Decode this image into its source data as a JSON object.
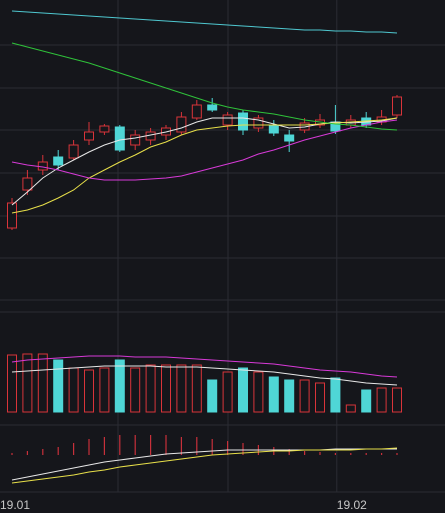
{
  "chart_data": [
    {
      "type": "candlestick",
      "categories": [
        "19.01",
        null,
        null,
        null,
        null,
        null,
        null,
        null,
        null,
        null,
        null,
        null,
        null,
        null,
        null,
        null,
        null,
        null,
        null,
        null,
        null,
        null,
        "19.02",
        null,
        null,
        null
      ],
      "up_color": "#d9343a",
      "down_color": "#4fd6d6",
      "open": [
        82,
        120,
        140,
        153,
        152,
        170,
        178,
        183,
        165,
        170,
        175,
        178,
        192,
        205,
        185,
        197,
        182,
        185,
        175,
        180,
        185,
        188,
        185,
        192,
        188,
        195
      ],
      "high": [
        112,
        140,
        155,
        160,
        170,
        188,
        186,
        185,
        180,
        182,
        185,
        198,
        210,
        212,
        198,
        200,
        195,
        190,
        180,
        192,
        196,
        205,
        195,
        198,
        200,
        215
      ],
      "low": [
        80,
        115,
        135,
        140,
        150,
        165,
        175,
        158,
        160,
        165,
        170,
        175,
        190,
        198,
        180,
        175,
        178,
        174,
        158,
        177,
        182,
        176,
        182,
        182,
        185,
        192
      ],
      "close": [
        107,
        132,
        148,
        145,
        165,
        178,
        184,
        160,
        175,
        178,
        182,
        193,
        205,
        200,
        195,
        180,
        192,
        177,
        169,
        187,
        190,
        179,
        190,
        185,
        193,
        213
      ],
      "ylim": [
        0,
        310
      ],
      "yticks": [
        10,
        52,
        94,
        137,
        180,
        222,
        265
      ],
      "grid": true,
      "series": [
        {
          "color": "#e8e8e8",
          "values": [
            105,
            118,
            132,
            142,
            150,
            158,
            165,
            170,
            172,
            175,
            178,
            182,
            188,
            192,
            192,
            192,
            190,
            186,
            182,
            183,
            186,
            188,
            187,
            188,
            189,
            192
          ]
        },
        {
          "color": "#e8e04a",
          "values": [
            97,
            100,
            105,
            112,
            120,
            132,
            140,
            148,
            155,
            163,
            168,
            175,
            180,
            182,
            184,
            185,
            185,
            185,
            185,
            185,
            186,
            187,
            188,
            189,
            190,
            192
          ]
        },
        {
          "color": "#d83ad8",
          "values": [
            148,
            145,
            143,
            140,
            136,
            132,
            130,
            130,
            130,
            131,
            132,
            134,
            138,
            142,
            146,
            150,
            156,
            160,
            165,
            170,
            174,
            178,
            182,
            185,
            188,
            190
          ]
        },
        {
          "color": "#2fc23a",
          "values": [
            267,
            263,
            259,
            255,
            251,
            247,
            242,
            237,
            232,
            227,
            222,
            217,
            212,
            207,
            203,
            200,
            198,
            196,
            193,
            190,
            188,
            186,
            185,
            183,
            181,
            180
          ]
        },
        {
          "color": "#4fc8d0",
          "values": [
            299,
            298,
            297,
            296,
            295,
            294,
            293,
            292,
            291,
            290,
            289,
            288,
            287,
            286,
            285,
            284,
            283,
            282,
            281,
            280,
            280,
            279,
            279,
            278,
            278,
            277
          ]
        }
      ]
    },
    {
      "type": "bar",
      "values": [
        57,
        58,
        58,
        52,
        44,
        42,
        44,
        52,
        44,
        47,
        47,
        47,
        47,
        32,
        40,
        44,
        40,
        35,
        32,
        32,
        29,
        34,
        7,
        22,
        24,
        24
      ],
      "ylim": [
        0,
        100
      ],
      "series": [
        {
          "color": "#e8e8e8",
          "values": [
            40,
            41,
            42,
            43,
            44,
            45,
            46,
            46,
            46,
            46,
            45,
            45,
            45,
            44,
            43,
            42,
            41,
            40,
            38,
            36,
            34,
            33,
            31,
            29,
            28,
            27
          ]
        },
        {
          "color": "#d83ad8",
          "values": [
            50,
            52,
            53,
            54,
            55,
            56,
            56,
            56,
            55,
            55,
            55,
            54,
            53,
            52,
            51,
            50,
            49,
            48,
            46,
            44,
            42,
            41,
            40,
            38,
            36,
            35
          ]
        }
      ]
    },
    {
      "type": "bar",
      "color": "#c8303a",
      "values": [
        2,
        4,
        6,
        8,
        12,
        16,
        18,
        20,
        20,
        20,
        20,
        18,
        18,
        16,
        14,
        12,
        10,
        8,
        6,
        4,
        3,
        2,
        2,
        2,
        2,
        2
      ],
      "ylim": [
        -30,
        25
      ],
      "series": [
        {
          "color": "#e8e8e8",
          "values": [
            -25,
            -22,
            -19,
            -16,
            -13,
            -10,
            -7,
            -5,
            -3,
            -1,
            1,
            2,
            3,
            4,
            5,
            5,
            5,
            5,
            5,
            5,
            5,
            6,
            6,
            6,
            6,
            6
          ]
        },
        {
          "color": "#e8e04a",
          "values": [
            -28,
            -26,
            -24,
            -22,
            -20,
            -17,
            -15,
            -12,
            -10,
            -8,
            -6,
            -4,
            -2,
            0,
            1,
            2,
            3,
            4,
            4,
            5,
            5,
            5,
            5,
            6,
            6,
            7
          ]
        }
      ]
    }
  ]
}
